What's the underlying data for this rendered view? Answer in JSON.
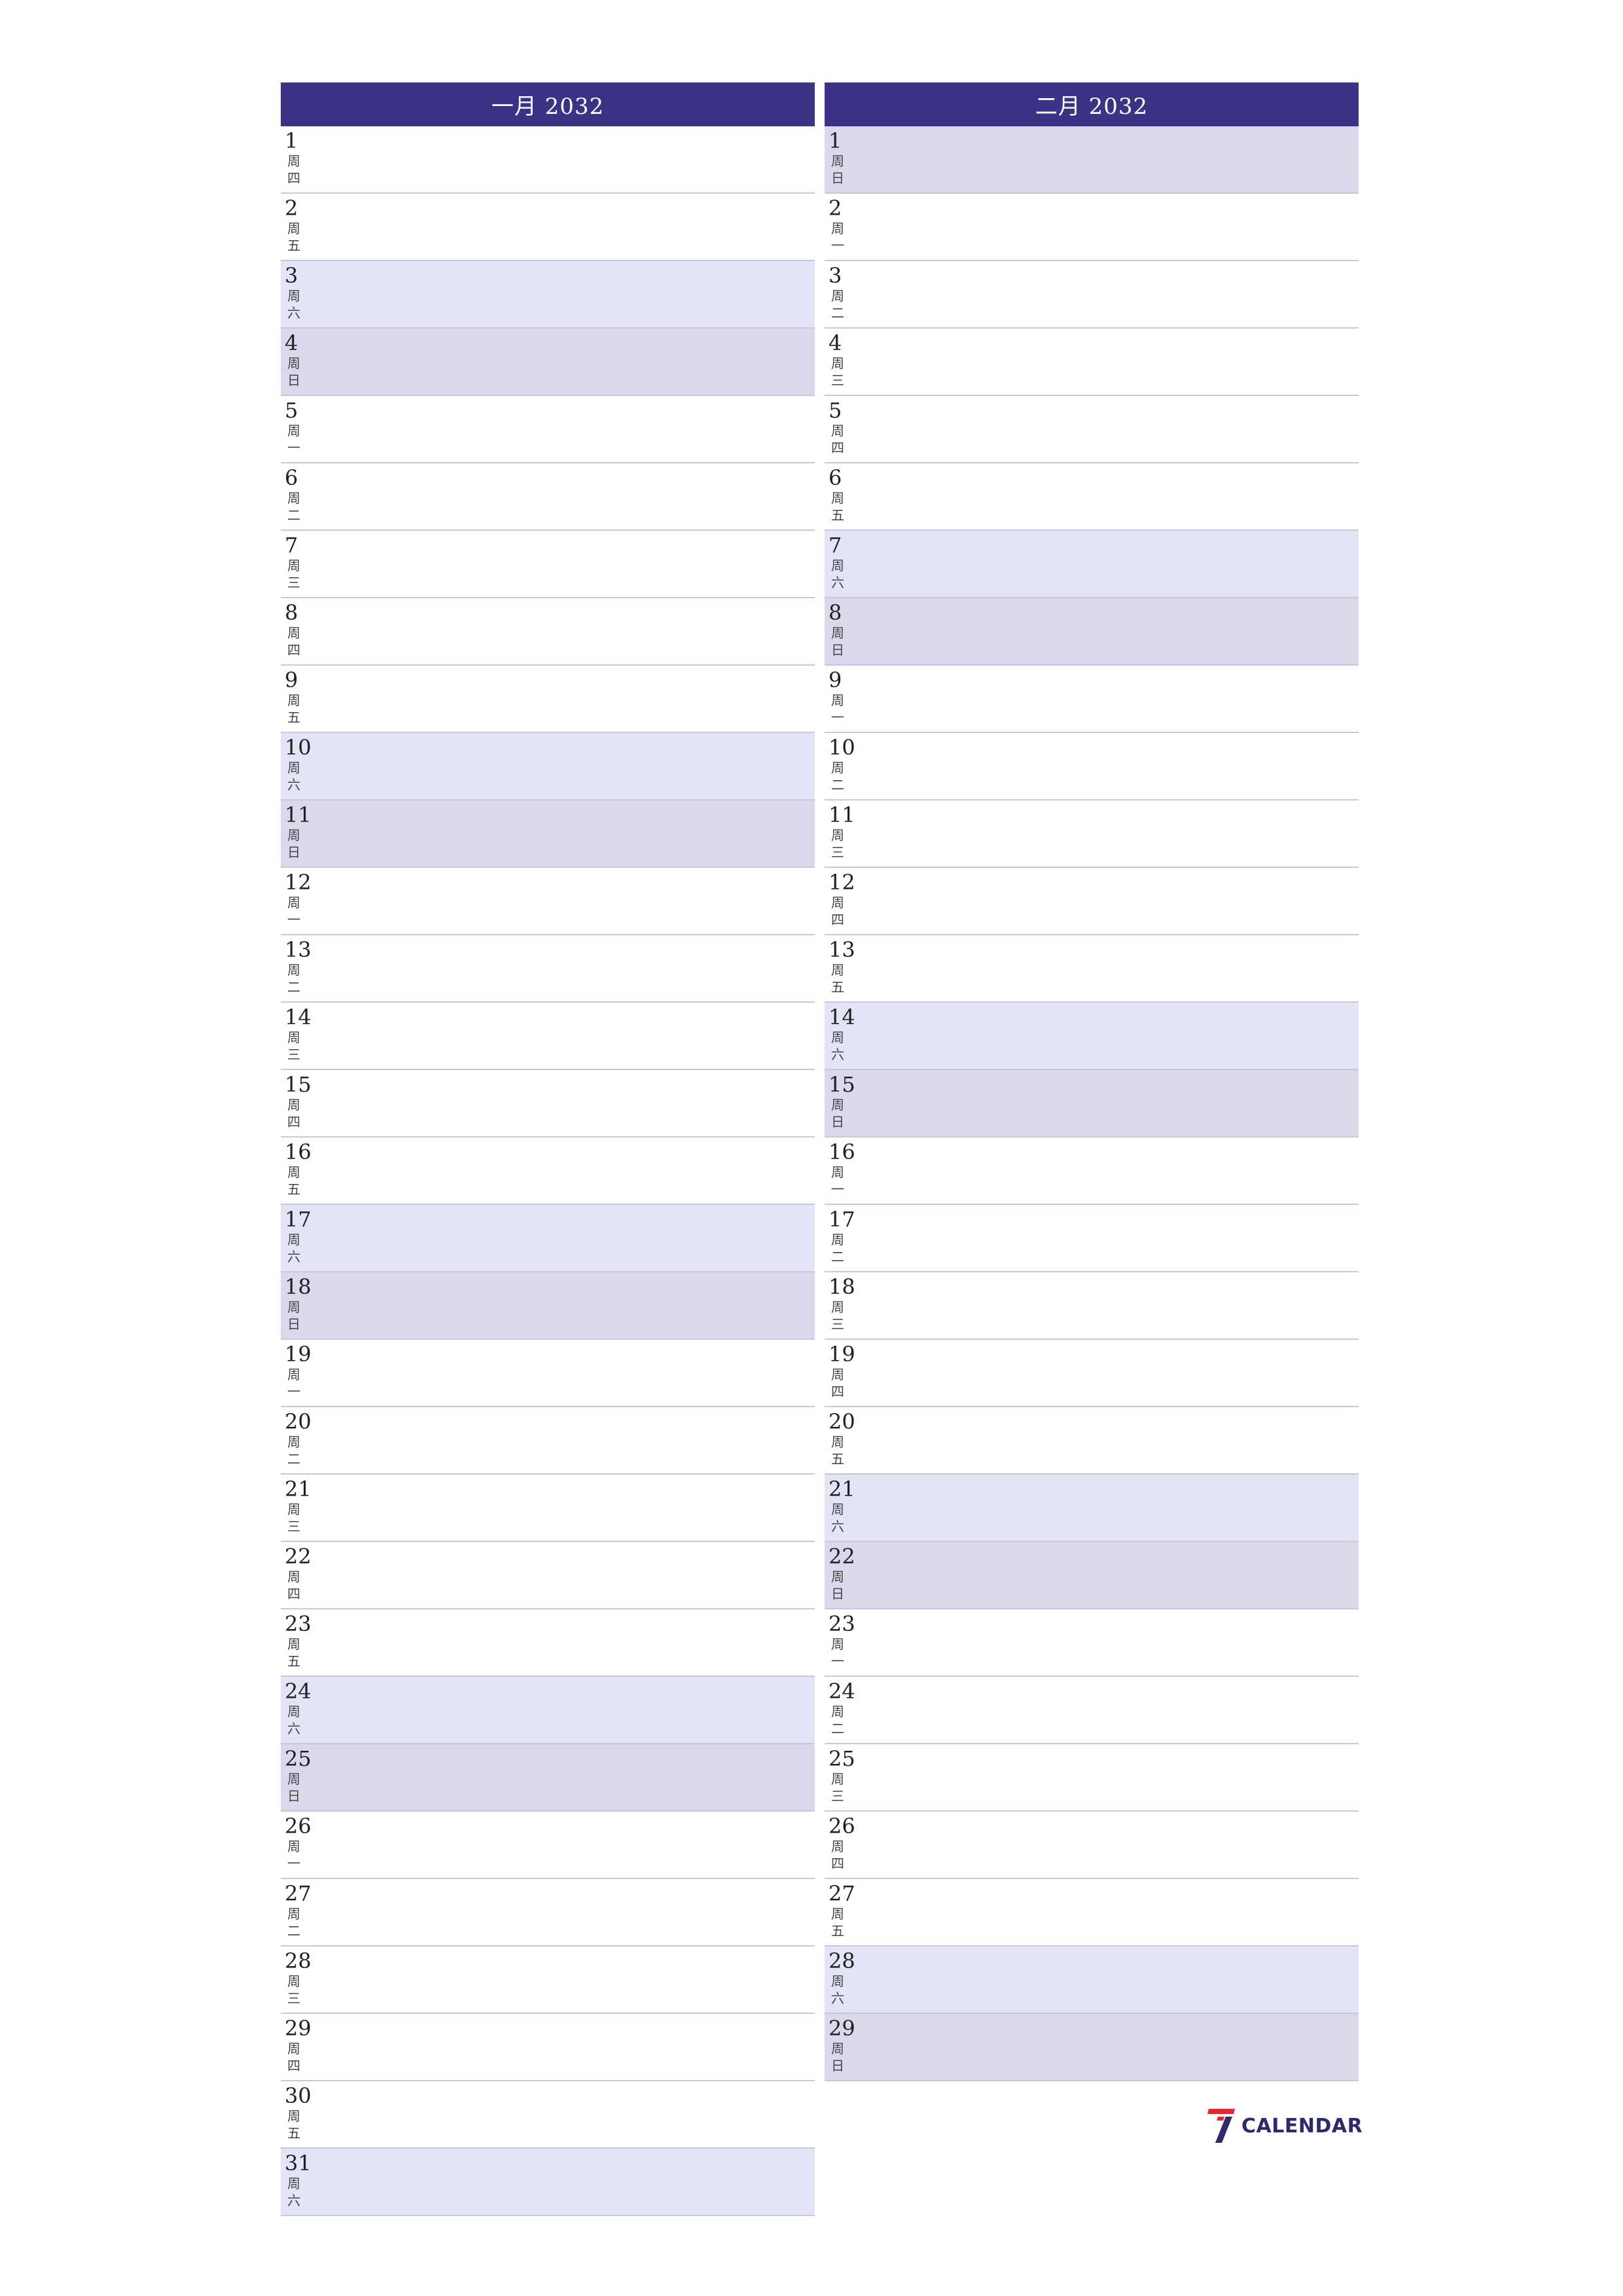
{
  "months": [
    {
      "title": "一月 2032",
      "days": [
        {
          "num": "1",
          "wd": "周四",
          "type": "weekday"
        },
        {
          "num": "2",
          "wd": "周五",
          "type": "weekday"
        },
        {
          "num": "3",
          "wd": "周六",
          "type": "sat"
        },
        {
          "num": "4",
          "wd": "周日",
          "type": "sun"
        },
        {
          "num": "5",
          "wd": "周一",
          "type": "weekday"
        },
        {
          "num": "6",
          "wd": "周二",
          "type": "weekday"
        },
        {
          "num": "7",
          "wd": "周三",
          "type": "weekday"
        },
        {
          "num": "8",
          "wd": "周四",
          "type": "weekday"
        },
        {
          "num": "9",
          "wd": "周五",
          "type": "weekday"
        },
        {
          "num": "10",
          "wd": "周六",
          "type": "sat"
        },
        {
          "num": "11",
          "wd": "周日",
          "type": "sun"
        },
        {
          "num": "12",
          "wd": "周一",
          "type": "weekday"
        },
        {
          "num": "13",
          "wd": "周二",
          "type": "weekday"
        },
        {
          "num": "14",
          "wd": "周三",
          "type": "weekday"
        },
        {
          "num": "15",
          "wd": "周四",
          "type": "weekday"
        },
        {
          "num": "16",
          "wd": "周五",
          "type": "weekday"
        },
        {
          "num": "17",
          "wd": "周六",
          "type": "sat"
        },
        {
          "num": "18",
          "wd": "周日",
          "type": "sun"
        },
        {
          "num": "19",
          "wd": "周一",
          "type": "weekday"
        },
        {
          "num": "20",
          "wd": "周二",
          "type": "weekday"
        },
        {
          "num": "21",
          "wd": "周三",
          "type": "weekday"
        },
        {
          "num": "22",
          "wd": "周四",
          "type": "weekday"
        },
        {
          "num": "23",
          "wd": "周五",
          "type": "weekday"
        },
        {
          "num": "24",
          "wd": "周六",
          "type": "sat"
        },
        {
          "num": "25",
          "wd": "周日",
          "type": "sun"
        },
        {
          "num": "26",
          "wd": "周一",
          "type": "weekday"
        },
        {
          "num": "27",
          "wd": "周二",
          "type": "weekday"
        },
        {
          "num": "28",
          "wd": "周三",
          "type": "weekday"
        },
        {
          "num": "29",
          "wd": "周四",
          "type": "weekday"
        },
        {
          "num": "30",
          "wd": "周五",
          "type": "weekday"
        },
        {
          "num": "31",
          "wd": "周六",
          "type": "sat"
        }
      ]
    },
    {
      "title": "二月 2032",
      "days": [
        {
          "num": "1",
          "wd": "周日",
          "type": "sun"
        },
        {
          "num": "2",
          "wd": "周一",
          "type": "weekday"
        },
        {
          "num": "3",
          "wd": "周二",
          "type": "weekday"
        },
        {
          "num": "4",
          "wd": "周三",
          "type": "weekday"
        },
        {
          "num": "5",
          "wd": "周四",
          "type": "weekday"
        },
        {
          "num": "6",
          "wd": "周五",
          "type": "weekday"
        },
        {
          "num": "7",
          "wd": "周六",
          "type": "sat"
        },
        {
          "num": "8",
          "wd": "周日",
          "type": "sun"
        },
        {
          "num": "9",
          "wd": "周一",
          "type": "weekday"
        },
        {
          "num": "10",
          "wd": "周二",
          "type": "weekday"
        },
        {
          "num": "11",
          "wd": "周三",
          "type": "weekday"
        },
        {
          "num": "12",
          "wd": "周四",
          "type": "weekday"
        },
        {
          "num": "13",
          "wd": "周五",
          "type": "weekday"
        },
        {
          "num": "14",
          "wd": "周六",
          "type": "sat"
        },
        {
          "num": "15",
          "wd": "周日",
          "type": "sun"
        },
        {
          "num": "16",
          "wd": "周一",
          "type": "weekday"
        },
        {
          "num": "17",
          "wd": "周二",
          "type": "weekday"
        },
        {
          "num": "18",
          "wd": "周三",
          "type": "weekday"
        },
        {
          "num": "19",
          "wd": "周四",
          "type": "weekday"
        },
        {
          "num": "20",
          "wd": "周五",
          "type": "weekday"
        },
        {
          "num": "21",
          "wd": "周六",
          "type": "sat"
        },
        {
          "num": "22",
          "wd": "周日",
          "type": "sun"
        },
        {
          "num": "23",
          "wd": "周一",
          "type": "weekday"
        },
        {
          "num": "24",
          "wd": "周二",
          "type": "weekday"
        },
        {
          "num": "25",
          "wd": "周三",
          "type": "weekday"
        },
        {
          "num": "26",
          "wd": "周四",
          "type": "weekday"
        },
        {
          "num": "27",
          "wd": "周五",
          "type": "weekday"
        },
        {
          "num": "28",
          "wd": "周六",
          "type": "sat"
        },
        {
          "num": "29",
          "wd": "周日",
          "type": "sun"
        }
      ]
    }
  ],
  "logo": {
    "text": "CALENDAR",
    "icon": "seven-logo-icon",
    "colors": {
      "red": "#e8262f",
      "navy": "#2f2a6e"
    }
  },
  "colors": {
    "header": "#3b3486",
    "saturday": "#e4e4f7",
    "sunday": "#dcd8ec",
    "row_line": "#c9c7dc"
  }
}
